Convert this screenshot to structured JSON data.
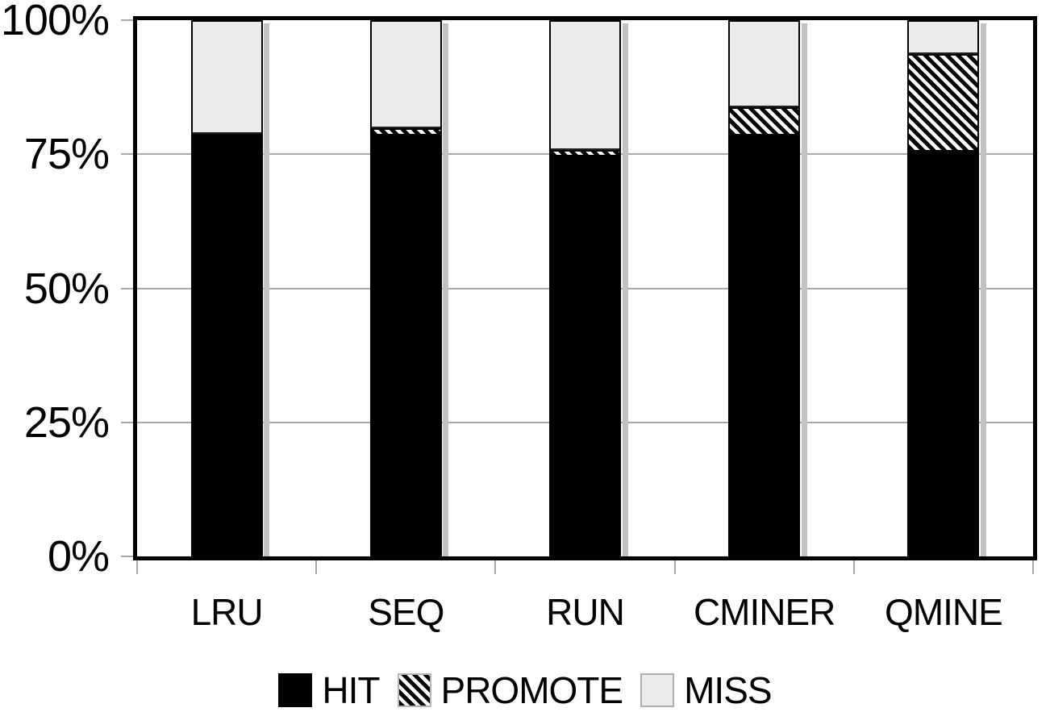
{
  "chart_data": {
    "type": "bar",
    "subtype": "stacked-percentage",
    "categories": [
      "LRU",
      "SEQ",
      "RUN",
      "CMINER",
      "QMINE"
    ],
    "series": [
      {
        "name": "HIT",
        "style": "solid-black",
        "values": [
          79,
          79,
          75,
          79,
          76
        ]
      },
      {
        "name": "PROMOTE",
        "style": "diagonal-hatch",
        "values": [
          0,
          1,
          1,
          5,
          18
        ]
      },
      {
        "name": "MISS",
        "style": "light-gray",
        "values": [
          21,
          20,
          24,
          16,
          6
        ]
      }
    ],
    "title": "",
    "xlabel": "",
    "ylabel": "",
    "ylim": [
      0,
      100
    ],
    "y_ticks": [
      "0%",
      "25%",
      "50%",
      "75%",
      "100%"
    ],
    "y_tick_values": [
      0,
      25,
      50,
      75,
      100
    ],
    "gridlines_at": [
      25,
      50,
      75
    ],
    "grid": "horizontal-only",
    "legend_position": "bottom",
    "legend": [
      {
        "label": "HIT",
        "swatch": "solid-black"
      },
      {
        "label": "PROMOTE",
        "swatch": "diagonal-hatch"
      },
      {
        "label": "MISS",
        "swatch": "light-gray"
      }
    ]
  },
  "colors": {
    "hit_fill": "#000000",
    "miss_fill": "#ebebeb",
    "hatch_foreground": "#000000",
    "hatch_background": "#ffffff",
    "frame": "#000000",
    "gridline": "#a8a8a8",
    "tick": "#a8a8a8",
    "bar_shadow": "#c2c2c2",
    "text": "#000000",
    "background": "#ffffff"
  }
}
